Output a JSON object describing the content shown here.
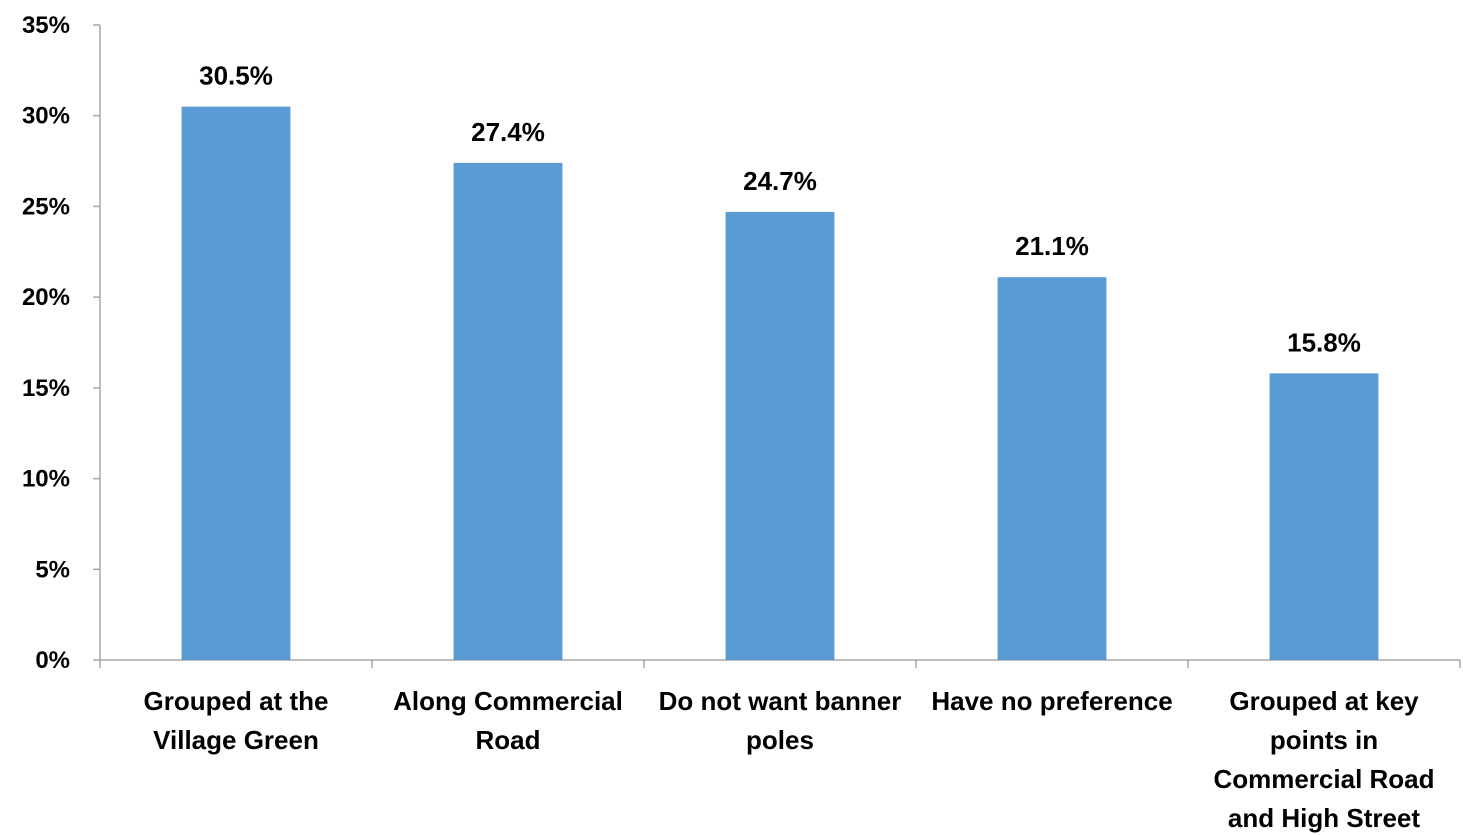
{
  "chart_data": {
    "type": "bar",
    "title": "",
    "xlabel": "",
    "ylabel": "",
    "categories": [
      [
        "Grouped at the",
        "Village Green"
      ],
      [
        "Along Commercial",
        "Road"
      ],
      [
        "Do not want banner",
        "poles"
      ],
      [
        "Have no preference"
      ],
      [
        "Grouped at key",
        "points in",
        "Commercial Road",
        "and High Street"
      ]
    ],
    "values": [
      30.5,
      27.4,
      24.7,
      21.1,
      15.8
    ],
    "data_labels": [
      "30.5%",
      "27.4%",
      "24.7%",
      "21.1%",
      "15.8%"
    ],
    "ylim": [
      0,
      35
    ],
    "yticks": [
      0,
      5,
      10,
      15,
      20,
      25,
      30,
      35
    ],
    "ytick_labels": [
      "0%",
      "5%",
      "10%",
      "15%",
      "20%",
      "25%",
      "30%",
      "35%"
    ],
    "grid": false,
    "legend": "none",
    "bar_color": "#5b9bd5"
  }
}
